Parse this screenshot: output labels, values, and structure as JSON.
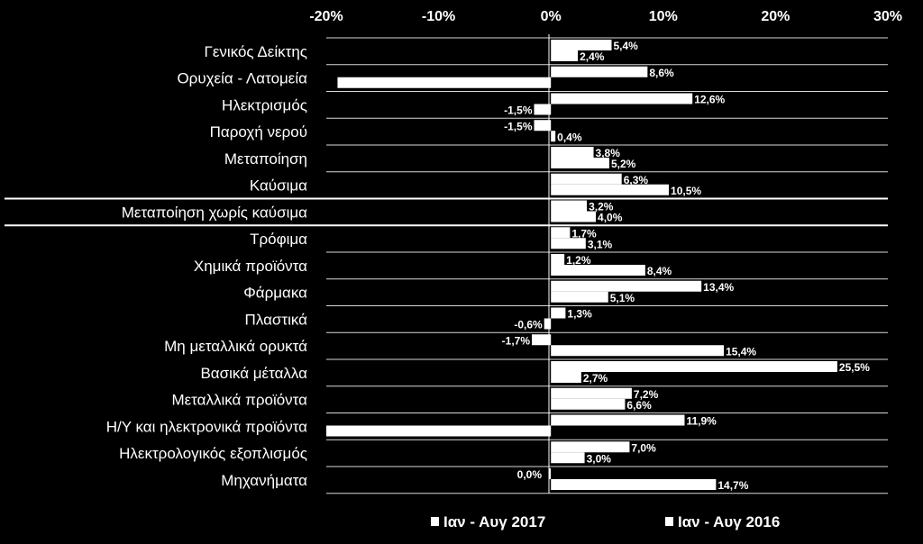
{
  "chart_data": {
    "type": "bar",
    "orientation": "horizontal",
    "x_ticks": [
      "-20%",
      "-10%",
      "0%",
      "10%",
      "20%",
      "30%"
    ],
    "xlim": [
      -20,
      30
    ],
    "categories": [
      "Γενικός Δείκτης",
      "Ορυχεία - Λατομεία",
      "Ηλεκτρισμός",
      "Παροχή νερού",
      "Μεταποίηση",
      "Καύσιμα",
      "Μεταποίηση χωρίς καύσιμα",
      "Τρόφιμα",
      "Χημικά προϊόντα",
      "Φάρμακα",
      "Πλαστικά",
      "Μη μεταλλικά ορυκτά",
      "Βασικά μέταλλα",
      "Μεταλλικά προϊόντα",
      "Η/Υ και ηλεκτρονικά προϊόντα",
      "Ηλεκτρολογικός εξοπλισμός",
      "Μηχανήματα"
    ],
    "series": [
      {
        "name": "Ιαν - Αυγ 2017",
        "values": [
          5.4,
          8.6,
          12.6,
          -1.5,
          3.8,
          6.3,
          3.2,
          1.7,
          1.2,
          13.4,
          1.3,
          -1.7,
          25.5,
          7.2,
          11.9,
          7.0,
          0.0
        ],
        "labels": [
          "5,4%",
          "8,6%",
          "12,6%",
          "-1,5%",
          "3,8%",
          "6,3%",
          "3,2%",
          "1,7%",
          "1,2%",
          "13,4%",
          "1,3%",
          "-1,7%",
          "25,5%",
          "7,2%",
          "11,9%",
          "7,0%",
          "0,0%"
        ]
      },
      {
        "name": "Ιαν - Αυγ 2016",
        "values": [
          2.4,
          -19.0,
          -1.5,
          0.4,
          5.2,
          10.5,
          4.0,
          3.1,
          8.4,
          5.1,
          -0.6,
          15.4,
          2.7,
          6.6,
          -20.0,
          3.0,
          14.7
        ],
        "labels": [
          "2,4%",
          "",
          "-1,5%",
          "0,4%",
          "5,2%",
          "10,5%",
          "4,0%",
          "3,1%",
          "8,4%",
          "5,1%",
          "-0,6%",
          "15,4%",
          "2,7%",
          "6,6%",
          "",
          "3,0%",
          "14,7%"
        ]
      }
    ],
    "grid": true,
    "legend_position": "bottom",
    "colors": {
      "background": "#000000",
      "bar": "#ffffff",
      "text": "#ffffff",
      "grid": "#ffffff"
    }
  }
}
